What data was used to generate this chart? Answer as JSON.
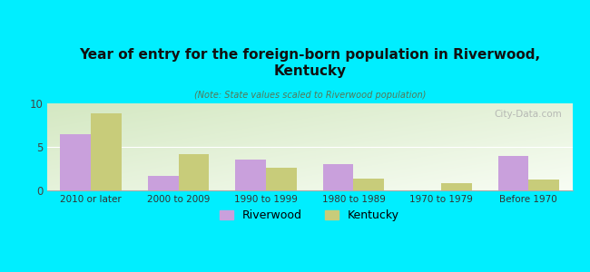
{
  "title": "Year of entry for the foreign-born population in Riverwood,\nKentucky",
  "subtitle": "(Note: State values scaled to Riverwood population)",
  "categories": [
    "2010 or later",
    "2000 to 2009",
    "1990 to 1999",
    "1980 to 1989",
    "1970 to 1979",
    "Before 1970"
  ],
  "riverwood_values": [
    6.5,
    1.7,
    3.5,
    3.0,
    0,
    4.0
  ],
  "kentucky_values": [
    8.9,
    4.2,
    2.6,
    1.4,
    0.8,
    1.2
  ],
  "riverwood_color": "#c9a0dc",
  "kentucky_color": "#c8cc7a",
  "background_color": "#00eeff",
  "plot_bg_top_left": "#d4e8c2",
  "plot_bg_bottom_right": "#f8fdf4",
  "ylim": [
    0,
    10
  ],
  "yticks": [
    0,
    5,
    10
  ],
  "bar_width": 0.35,
  "watermark": "City-Data.com",
  "legend_labels": [
    "Riverwood",
    "Kentucky"
  ]
}
